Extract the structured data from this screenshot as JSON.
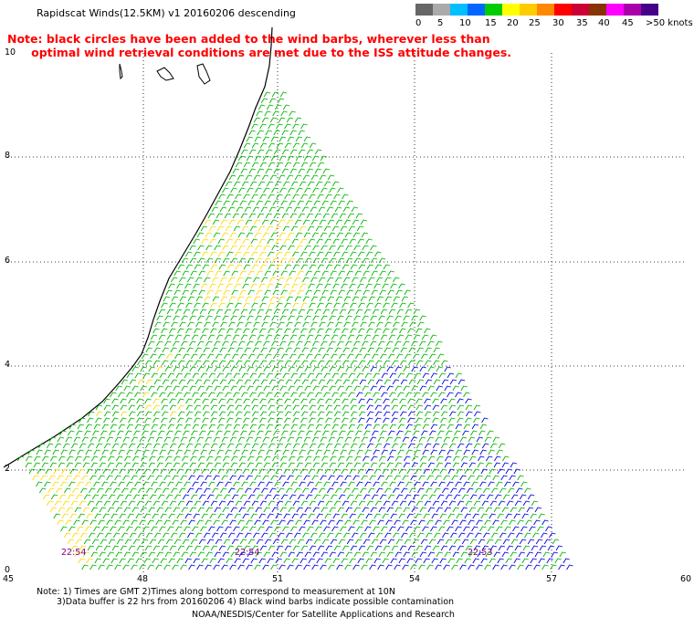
{
  "title": "Rapidscat Winds(12.5KM) v1 20160206 descending",
  "note_line1": "Note: black circles have been added to the wind barbs, wherever less than",
  "note_line2": "      optimal wind retrieval conditions are met due to the ISS attitude changes.",
  "legend": {
    "labels": [
      "0",
      "5",
      "10",
      "15",
      "20",
      "25",
      "30",
      "35",
      "40",
      "45",
      ">50 knots"
    ],
    "colors": [
      "#666666",
      "#aaaaaa",
      "#00bfff",
      "#0066ff",
      "#00cc00",
      "#ffff00",
      "#ffcc00",
      "#ff8800",
      "#ff0000",
      "#cc0033",
      "#883300",
      "#ff00ff",
      "#aa00aa",
      "#440088"
    ]
  },
  "axes": {
    "x_ticks": [
      "45",
      "48",
      "51",
      "54",
      "57",
      "60"
    ],
    "y_ticks": [
      "0",
      "2",
      "4",
      "6",
      "8",
      "10"
    ]
  },
  "time_labels": [
    "22:54",
    "22:54",
    "22:53"
  ],
  "footnote_line1": "Note: 1) Times are GMT 2)Times along bottom correspond to measurement at 10N",
  "footnote_line2": "3)Data buffer is 22 hrs from 20160206 4) Black wind barbs indicate possible contamination",
  "credit": "NOAA/NESDIS/Center for Satellite Applications and Research"
}
